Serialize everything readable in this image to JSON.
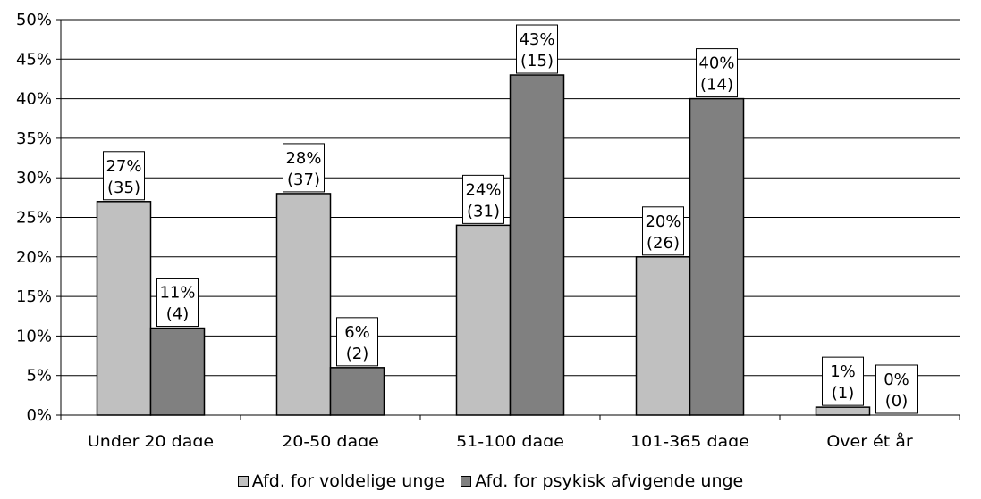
{
  "chart_data": {
    "type": "bar",
    "categories": [
      "Under 20 dage",
      "20-50 dage",
      "51-100 dage",
      "101-365 dage",
      "Over ét år"
    ],
    "series": [
      {
        "name": "Afd. for voldelige unge",
        "values": [
          27,
          28,
          24,
          20,
          1
        ],
        "counts": [
          35,
          37,
          31,
          26,
          1
        ],
        "labels_pct": [
          "27%",
          "28%",
          "24%",
          "20%",
          "1%"
        ],
        "labels_count": [
          "(35)",
          "(37)",
          "(31)",
          "(26)",
          "(1)"
        ],
        "color": "#c0c0c0"
      },
      {
        "name": "Afd. for psykisk afvigende unge",
        "values": [
          11,
          6,
          43,
          40,
          0
        ],
        "counts": [
          4,
          2,
          15,
          14,
          0
        ],
        "labels_pct": [
          "11%",
          "6%",
          "43%",
          "40%",
          "0%"
        ],
        "labels_count": [
          "(4)",
          "(2)",
          "(15)",
          "(14)",
          "(0)"
        ],
        "color": "#808080"
      }
    ],
    "y_ticks": [
      "0%",
      "5%",
      "10%",
      "15%",
      "20%",
      "25%",
      "30%",
      "35%",
      "40%",
      "45%",
      "50%"
    ],
    "ylim": [
      0,
      50
    ],
    "grid": true,
    "legend_position": "bottom"
  }
}
